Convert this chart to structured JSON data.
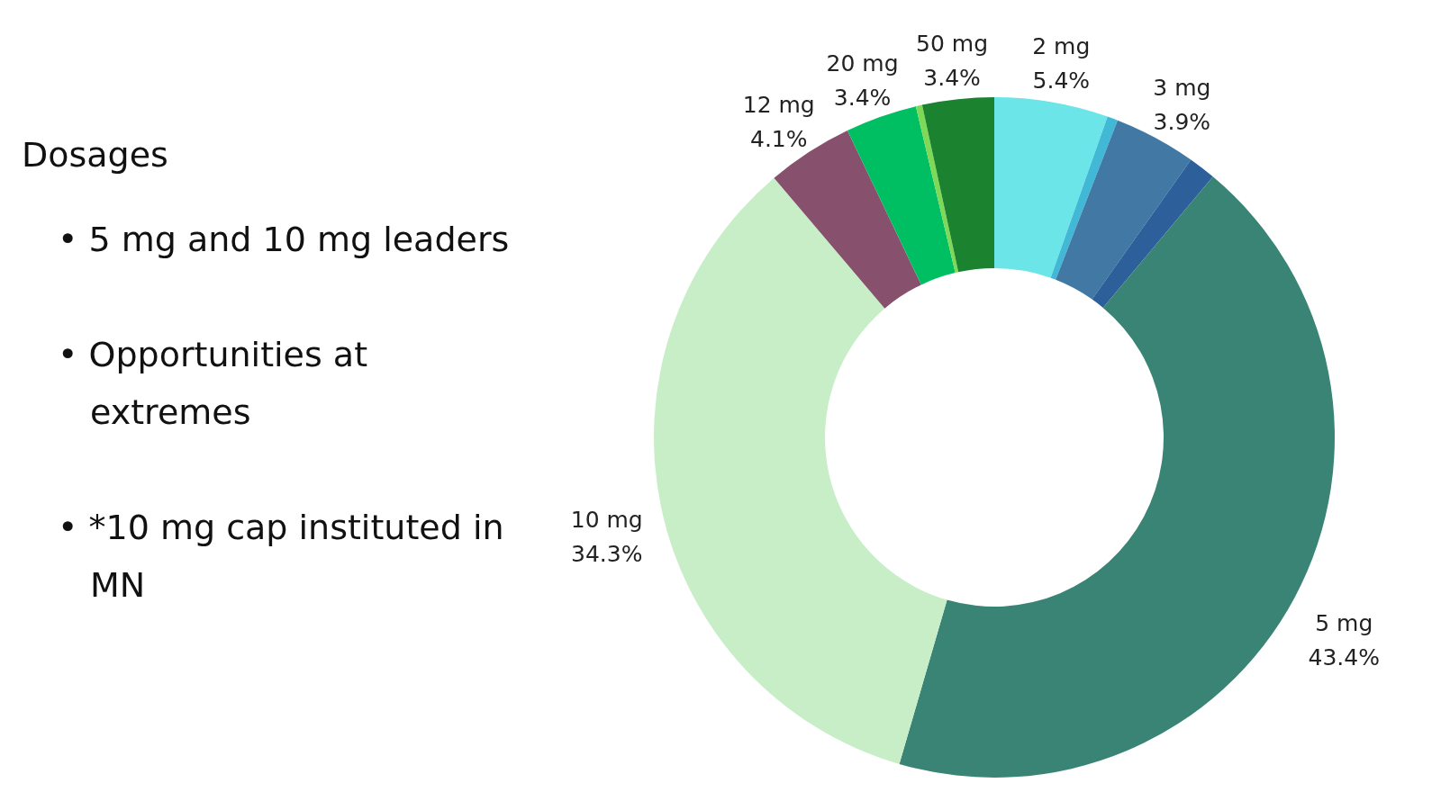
{
  "chart_data": {
    "type": "donut",
    "title": "Dosages",
    "annotations": [
      "• 5 mg and 10 mg leaders",
      "• Opportunities at extremes",
      "• *10 mg cap instituted in MN"
    ],
    "categories": [
      "2 mg",
      null,
      "3 mg",
      null,
      "5 mg",
      "10 mg",
      "12 mg",
      "20 mg",
      null,
      "50 mg"
    ],
    "values": [
      5.4,
      0.5,
      3.9,
      1.3,
      43.4,
      34.3,
      4.1,
      3.4,
      0.3,
      3.4
    ],
    "value_labels": [
      "5.4%",
      null,
      "3.9%",
      null,
      "43.4%",
      "34.3%",
      "4.1%",
      "3.4%",
      null,
      "3.4%"
    ],
    "colors": [
      "#6ce5e8",
      "#41b8d5",
      "#4178a4",
      "#2d5f9a",
      "#3a8476",
      "#c8eec8",
      "#87516e",
      "#00bf63",
      "#7ed957",
      "#1b8230"
    ]
  }
}
